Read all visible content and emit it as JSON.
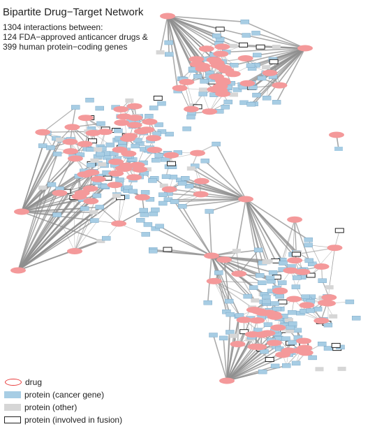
{
  "header": {
    "title": "Bipartite Drug−Target Network",
    "subtitle_lines": [
      "1304 interactions between:",
      "124 FDA−approved anticancer drugs &",
      "399 human protein−coding genes"
    ]
  },
  "legend": {
    "items": [
      {
        "label": "drug",
        "symbol": "drug"
      },
      {
        "label": "protein (cancer gene)",
        "symbol": "cancer"
      },
      {
        "label": "protein (other)",
        "symbol": "other"
      },
      {
        "label": "protein (involved in fusion)",
        "symbol": "fusion"
      }
    ]
  },
  "colors": {
    "drug_fill": "#f4999a",
    "drug_legend_stroke": "#e83a3a",
    "cancer_fill": "#a7cde4",
    "cancer_stroke": "#6d9ec0",
    "other_fill": "#d6d6d6",
    "fusion_stroke": "#222222",
    "edge": "#8f8f8f"
  }
}
